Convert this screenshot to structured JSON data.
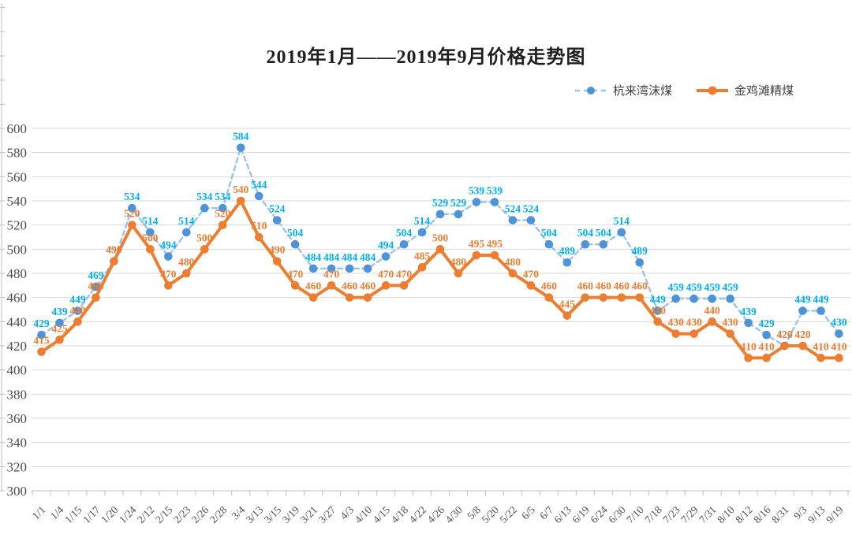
{
  "page": {
    "background": "#FFFFFF"
  },
  "chart_data": {
    "type": "line",
    "title": "2019年1月——2019年9月价格走势图",
    "xlabel": "",
    "ylabel": "",
    "categories": [
      "1/1",
      "1/4",
      "1/15",
      "1/17",
      "1/20",
      "1/24",
      "2/12",
      "2/15",
      "2/23",
      "2/26",
      "2/28",
      "3/4",
      "3/13",
      "3/15",
      "3/19",
      "3/21",
      "3/27",
      "4/3",
      "4/10",
      "4/15",
      "4/18",
      "4/22",
      "4/26",
      "4/30",
      "5/8",
      "5/20",
      "5/22",
      "6/5",
      "6/7",
      "6/13",
      "6/19",
      "6/24",
      "6/30",
      "7/10",
      "7/18",
      "7/23",
      "7/29",
      "7/31",
      "8/10",
      "8/12",
      "8/16",
      "8/31",
      "9/3",
      "9/13",
      "9/19"
    ],
    "series": [
      {
        "name": "杭来湾沫煤",
        "style": "dashed",
        "line_color": "#9DC3E6",
        "marker_color": "#4D93D9",
        "label_color": "#00B0F0",
        "values": [
          429,
          439,
          449,
          469,
          490,
          534,
          514,
          494,
          514,
          534,
          534,
          584,
          544,
          524,
          504,
          484,
          484,
          484,
          484,
          494,
          504,
          514,
          529,
          529,
          539,
          539,
          524,
          524,
          504,
          489,
          504,
          504,
          514,
          489,
          449,
          459,
          459,
          459,
          459,
          439,
          429,
          420,
          449,
          449,
          430
        ]
      },
      {
        "name": "金鸡滩精煤",
        "style": "solid",
        "line_color": "#ED7D31",
        "marker_color": "#ED7D31",
        "label_color": "#ED7D31",
        "values": [
          415,
          425,
          440,
          460,
          490,
          520,
          500,
          470,
          480,
          500,
          520,
          540,
          510,
          490,
          470,
          460,
          470,
          460,
          460,
          470,
          470,
          485,
          500,
          480,
          495,
          495,
          480,
          470,
          460,
          445,
          460,
          460,
          460,
          460,
          440,
          430,
          430,
          440,
          430,
          410,
          410,
          420,
          420,
          410,
          410
        ]
      }
    ],
    "ylim": [
      300,
      600
    ],
    "ytick_step": 20,
    "y_tick_labels": [
      "300",
      "320",
      "340",
      "360",
      "380",
      "400",
      "420",
      "440",
      "460",
      "480",
      "500",
      "520",
      "540",
      "560",
      "580",
      "600"
    ],
    "grid": true,
    "legend_position": "top-right",
    "colors": {
      "grid": "#D9D9D9",
      "axis": "#BFBFBF",
      "tick_text": "#4D4D4D",
      "title_text": "#1F1F1F",
      "legend_text": "#3F3F3F"
    }
  }
}
